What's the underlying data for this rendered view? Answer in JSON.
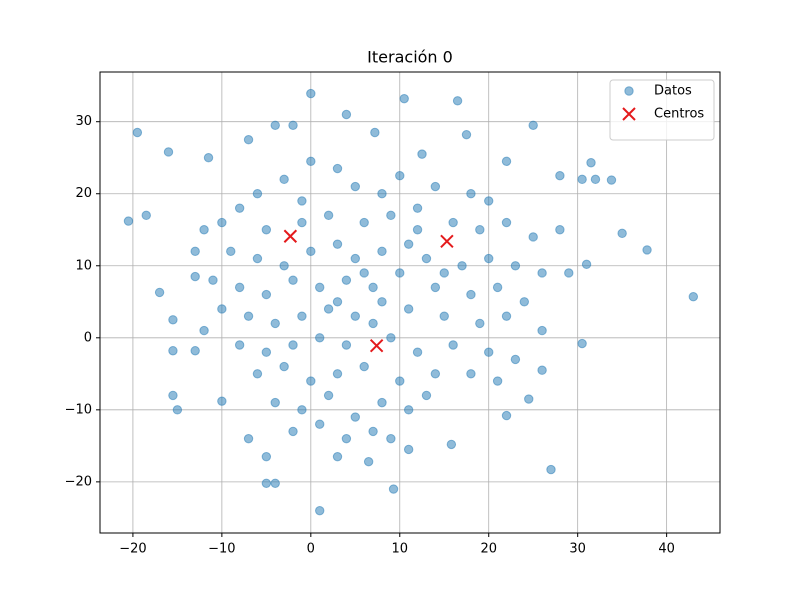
{
  "chart_data": {
    "type": "scatter",
    "title": "Iteración 0",
    "xlim": [
      -23.7,
      46
    ],
    "ylim": [
      -27.1,
      36.9
    ],
    "xticks": [
      {
        "value": -20,
        "label": "−20"
      },
      {
        "value": -10,
        "label": "−10"
      },
      0,
      10,
      20,
      30,
      40
    ],
    "yticks": [
      {
        "value": -20,
        "label": "−20"
      },
      {
        "value": -10,
        "label": "−10"
      },
      0,
      10,
      20,
      30
    ],
    "grid": true,
    "legend": "upper right",
    "series": [
      {
        "name": "Datos",
        "color": "#1f77b4",
        "marker": "circle",
        "x": [
          -20.5,
          -19.5,
          -18.5,
          43,
          37.8,
          35,
          27,
          1,
          9.3,
          10.5,
          0,
          16.5,
          -5,
          -4,
          25,
          -16,
          -17,
          -15,
          -15.5,
          33.8,
          31.5,
          30.5,
          32,
          31,
          30.5,
          26,
          24.5,
          22,
          15.8,
          11,
          6.5,
          3,
          -5,
          -7,
          -10,
          -12,
          -13,
          -15.5,
          -15.5,
          -13,
          -11.5,
          -7,
          -4,
          -2,
          4,
          7.2,
          12.5,
          17.5,
          22,
          28,
          0,
          3,
          -3,
          5,
          8,
          10,
          14,
          18,
          20,
          -6,
          -8,
          -10,
          -12,
          -5,
          -1,
          2,
          6,
          9,
          12,
          16,
          19,
          22,
          25,
          28,
          -13,
          -9,
          -6,
          -3,
          0,
          3,
          5,
          8,
          11,
          13,
          17,
          20,
          23,
          26,
          29,
          -11,
          -8,
          -5,
          -2,
          1,
          4,
          7,
          10,
          14,
          18,
          21,
          24,
          -10,
          -7,
          -4,
          -1,
          2,
          5,
          8,
          11,
          15,
          19,
          22,
          26,
          -8,
          -5,
          -2,
          1,
          4,
          9,
          12,
          16,
          20,
          23,
          -6,
          -3,
          0,
          3,
          6,
          10,
          14,
          18,
          21,
          -4,
          -1,
          2,
          5,
          8,
          11,
          13,
          -2,
          1,
          4,
          7,
          9,
          6,
          3,
          12,
          -1,
          15,
          7
        ],
        "values": [
          16.2,
          28.5,
          17,
          5.7,
          12.2,
          14.5,
          -18.3,
          -24,
          -21,
          33.2,
          33.9,
          32.9,
          -20.2,
          -20.2,
          29.5,
          25.8,
          6.3,
          -10,
          -8,
          21.9,
          24.3,
          22,
          22,
          10.2,
          -0.8,
          -4.5,
          -8.5,
          -10.8,
          -14.8,
          -15.5,
          -17.2,
          -16.5,
          -16.5,
          -14,
          -8.8,
          1,
          -1.8,
          -1.8,
          2.5,
          8.5,
          25,
          27.5,
          29.5,
          29.5,
          31,
          28.5,
          25.5,
          28.2,
          24.5,
          22.5,
          24.5,
          23.5,
          22,
          21,
          20,
          22.5,
          21,
          20,
          19,
          20,
          18,
          16,
          15,
          15,
          16,
          17,
          16,
          17,
          18,
          16,
          15,
          16,
          14,
          15,
          12,
          12,
          11,
          10,
          12,
          13,
          11,
          12,
          13,
          11,
          10,
          11,
          10,
          9,
          9,
          8,
          7,
          6,
          8,
          7,
          8,
          7,
          9,
          7,
          6,
          7,
          5,
          4,
          3,
          2,
          3,
          4,
          3,
          5,
          4,
          3,
          2,
          3,
          1,
          -1,
          -2,
          -1,
          0,
          -1,
          0,
          -2,
          -1,
          -2,
          -3,
          -5,
          -4,
          -6,
          -5,
          -4,
          -6,
          -5,
          -5,
          -6,
          -9,
          -10,
          -8,
          -11,
          -9,
          -10,
          -8,
          -13,
          -12,
          -14,
          -13,
          -14,
          9,
          5,
          15,
          19,
          9,
          2
        ]
      },
      {
        "name": "Centros",
        "color": "#e41a1c",
        "marker": "x",
        "x": [
          -2.3,
          15.3,
          7.4
        ],
        "values": [
          14.1,
          13.4,
          -1.1
        ]
      }
    ]
  }
}
